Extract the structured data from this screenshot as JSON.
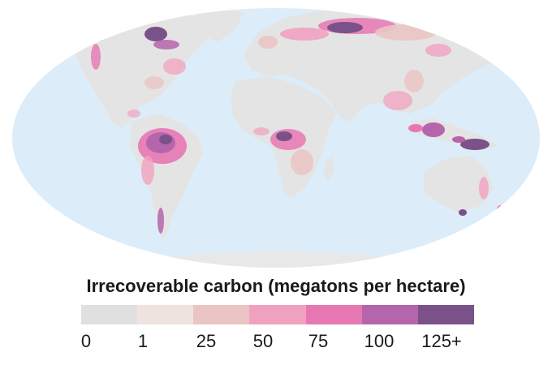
{
  "map": {
    "ocean_color": "#dcedf9",
    "land_color": "#e4e4e4",
    "sea_ice_color": "#e8e8e8"
  },
  "legend": {
    "title": "Irrecoverable carbon (megatons per hectare)",
    "bins": [
      {
        "color": "#e0e0e0"
      },
      {
        "color": "#efe3df"
      },
      {
        "color": "#ebc4c4"
      },
      {
        "color": "#f1a1c0"
      },
      {
        "color": "#e777b3"
      },
      {
        "color": "#b565ac"
      },
      {
        "color": "#7a5188"
      }
    ],
    "tick_labels": [
      "0",
      "1",
      "25",
      "50",
      "75",
      "100",
      "125+"
    ]
  }
}
